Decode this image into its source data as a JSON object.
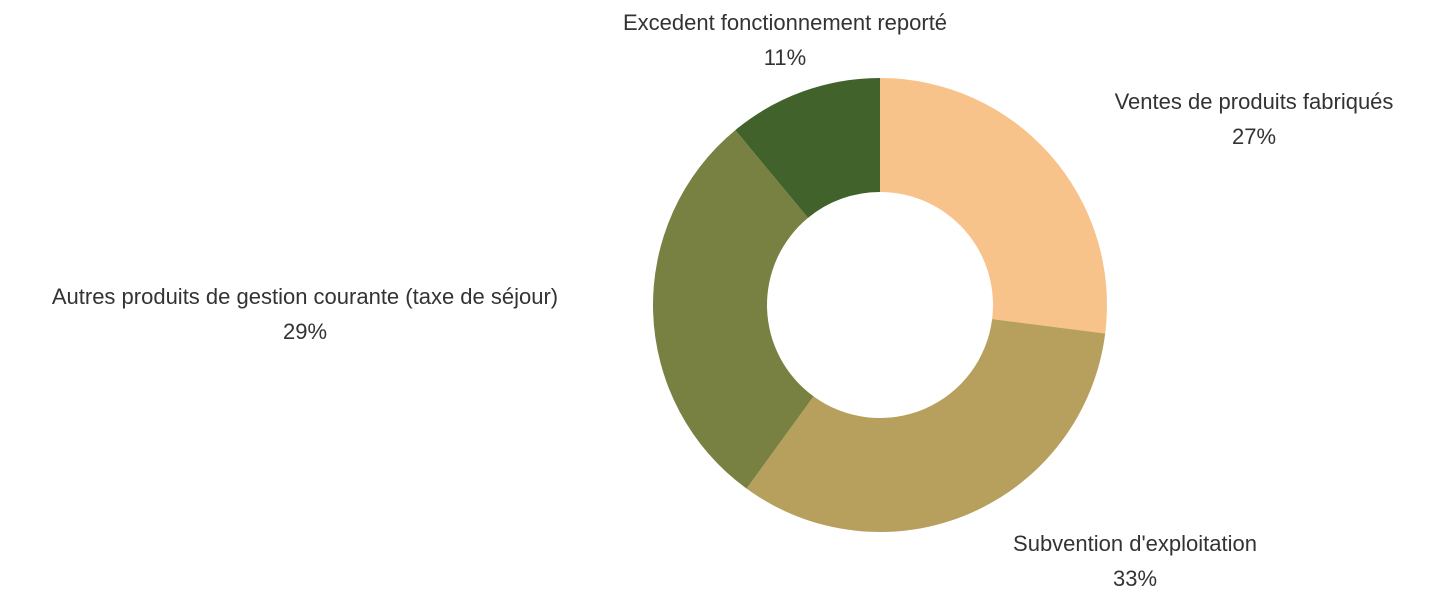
{
  "chart_data": {
    "type": "donut",
    "categories": [
      "Ventes de produits fabriqués",
      "Subvention d'exploitation",
      "Autres produits de gestion courante (taxe de séjour)",
      "Excedent fonctionnement reporté"
    ],
    "values": [
      27,
      33,
      29,
      11
    ],
    "value_labels": [
      "27%",
      "33%",
      "29%",
      "11%"
    ],
    "colors": [
      "#f8c28b",
      "#b7a05e",
      "#798142",
      "#41622b"
    ]
  }
}
